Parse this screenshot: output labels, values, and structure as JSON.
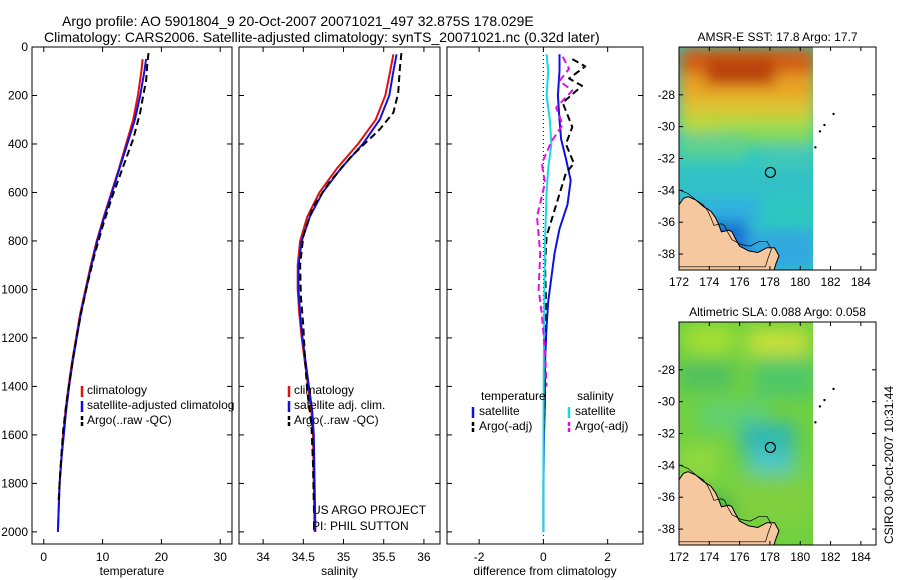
{
  "figure": {
    "title_line1": "Argo profile: AO 5901804_9 20-Oct-2007 20071021_497 32.875S 178.029E",
    "title_line2": "Climatology: CARS2006. Satellite-adjusted climatology: synTS_20071021.nc (0.32d later)",
    "side_stamp": "CSIRO 30-Oct-2007 10:31:44",
    "project_line1": "US ARGO PROJECT",
    "project_line2": "PI: PHIL SUTTON"
  },
  "colors": {
    "climatology": "#e01010",
    "satellite": "#1010e0",
    "argo": "#000000",
    "salinity_satellite": "#18d8e0",
    "salinity_argo": "#e010e0",
    "land": "#f5c8a0"
  },
  "chart_data": [
    {
      "type": "line",
      "name": "temperature-profile",
      "xlabel": "temperature",
      "ylabel": "",
      "xlim": [
        -2,
        32
      ],
      "ylim": [
        2050,
        0
      ],
      "xticks": [
        0,
        10,
        20,
        30
      ],
      "xtick_labels": [
        "0",
        "10",
        "20",
        "30"
      ],
      "yticks": [
        0,
        200,
        400,
        600,
        800,
        1000,
        1200,
        1400,
        1600,
        1800,
        2000
      ],
      "ytick_labels": [
        "0",
        "200",
        "400",
        "600",
        "800",
        "1000",
        "1200",
        "1400",
        "1600",
        "1800",
        "2000"
      ],
      "legend": [
        "climatology",
        "satellite-adjusted climatolog",
        "Argo(..raw -QC)"
      ],
      "series": [
        {
          "name": "climatology",
          "style": "solid",
          "color": "#e01010",
          "x": [
            16.8,
            16.6,
            16.0,
            15.2,
            14.0,
            12.8,
            11.5,
            10.2,
            9.0,
            8.0,
            7.1,
            6.2,
            5.5,
            4.8,
            4.2,
            3.7,
            3.3,
            3.0,
            2.7,
            2.4
          ],
          "y": [
            50,
            100,
            200,
            300,
            400,
            500,
            600,
            700,
            800,
            900,
            1000,
            1100,
            1200,
            1300,
            1400,
            1500,
            1600,
            1700,
            1800,
            2000
          ]
        },
        {
          "name": "satellite-adjusted climatolog",
          "style": "solid",
          "color": "#1010e0",
          "x": [
            17.4,
            17.1,
            16.4,
            15.5,
            14.2,
            12.9,
            11.6,
            10.3,
            9.1,
            8.1,
            7.2,
            6.3,
            5.6,
            4.9,
            4.3,
            3.8,
            3.4,
            3.0,
            2.7,
            2.4
          ],
          "y": [
            50,
            100,
            200,
            300,
            400,
            500,
            600,
            700,
            800,
            900,
            1000,
            1100,
            1200,
            1300,
            1400,
            1500,
            1600,
            1700,
            1800,
            2000
          ]
        },
        {
          "name": "Argo(..raw -QC)",
          "style": "dashed",
          "color": "#000000",
          "x": [
            17.8,
            17.6,
            17.4,
            16.9,
            16.4,
            15.2,
            13.4,
            11.6,
            10.0,
            8.6,
            7.4,
            6.5,
            5.7,
            5.0,
            4.4,
            3.8,
            3.3,
            3.0,
            2.7,
            2.5
          ],
          "y": [
            25,
            70,
            140,
            200,
            270,
            380,
            500,
            620,
            740,
            860,
            980,
            1080,
            1180,
            1280,
            1380,
            1480,
            1580,
            1680,
            1800,
            1880
          ]
        }
      ]
    },
    {
      "type": "line",
      "name": "salinity-profile",
      "xlabel": "salinity",
      "ylabel": "",
      "xlim": [
        33.7,
        36.2
      ],
      "ylim": [
        2050,
        0
      ],
      "xticks": [
        34,
        34.5,
        35,
        35.5,
        36
      ],
      "xtick_labels": [
        "34",
        "34.5",
        "35",
        "35.5",
        "36"
      ],
      "legend": [
        "climatology",
        "satellite adj. clim.",
        "Argo(..raw -QC)"
      ],
      "series": [
        {
          "name": "climatology",
          "style": "solid",
          "color": "#e01010",
          "x": [
            35.62,
            35.58,
            35.52,
            35.4,
            35.18,
            34.92,
            34.7,
            34.55,
            34.46,
            34.43,
            34.43,
            34.45,
            34.48,
            34.52,
            34.56,
            34.6,
            34.62,
            34.63,
            34.64
          ],
          "y": [
            30,
            100,
            200,
            300,
            400,
            500,
            600,
            700,
            800,
            900,
            1000,
            1100,
            1200,
            1300,
            1400,
            1500,
            1600,
            1800,
            2000
          ]
        },
        {
          "name": "satellite adj. clim.",
          "style": "solid",
          "color": "#1010e0",
          "x": [
            35.66,
            35.62,
            35.57,
            35.45,
            35.24,
            34.97,
            34.74,
            34.58,
            34.48,
            34.44,
            34.44,
            34.46,
            34.49,
            34.53,
            34.57,
            34.61,
            34.63,
            34.64,
            34.65
          ],
          "y": [
            30,
            100,
            200,
            300,
            400,
            500,
            600,
            700,
            800,
            900,
            1000,
            1100,
            1200,
            1300,
            1400,
            1500,
            1600,
            1800,
            2000
          ]
        },
        {
          "name": "Argo(..raw -QC)",
          "style": "dashed",
          "color": "#000000",
          "x": [
            35.72,
            35.7,
            35.68,
            35.62,
            35.45,
            35.1,
            34.82,
            34.62,
            34.5,
            34.46,
            34.47,
            34.5,
            34.52,
            34.55,
            34.6,
            34.62,
            34.63
          ],
          "y": [
            25,
            90,
            190,
            270,
            340,
            450,
            560,
            660,
            780,
            900,
            1030,
            1150,
            1280,
            1420,
            1560,
            1720,
            1880
          ]
        }
      ]
    },
    {
      "type": "line",
      "name": "difference-profile",
      "xlabel": "difference from climatology",
      "ylabel": "",
      "xlim": [
        -3,
        3.1
      ],
      "ylim": [
        2050,
        0
      ],
      "xticks": [
        -2,
        0,
        2
      ],
      "xtick_labels": [
        "-2",
        "0",
        "2"
      ],
      "legend_groups": [
        {
          "heading": "temperature",
          "items": [
            "satellite",
            "Argo(-adj)"
          ]
        },
        {
          "heading": "salinity",
          "items": [
            "satellite",
            "Argo(-adj)"
          ]
        }
      ],
      "series": [
        {
          "name": "temperature satellite",
          "style": "solid",
          "color": "#1010e0",
          "x": [
            0.5,
            0.5,
            0.45,
            0.5,
            0.55,
            0.7,
            0.85,
            0.75,
            0.5,
            0.35,
            0.25,
            0.15,
            0.1,
            0.05,
            0.05,
            0.02,
            0.0,
            0.0
          ],
          "y": [
            30,
            100,
            200,
            300,
            380,
            460,
            550,
            650,
            750,
            850,
            950,
            1050,
            1150,
            1300,
            1450,
            1600,
            1800,
            2000
          ]
        },
        {
          "name": "temperature Argo(-adj)",
          "style": "dashed",
          "color": "#000000",
          "x": [
            0.9,
            1.3,
            0.8,
            1.2,
            0.6,
            0.9,
            0.7,
            0.95,
            0.7,
            0.1,
            0.05,
            0.08,
            0.05,
            0.03,
            0.02
          ],
          "y": [
            50,
            80,
            130,
            160,
            230,
            330,
            400,
            480,
            520,
            780,
            900,
            1050,
            1200,
            1400,
            1600
          ]
        },
        {
          "name": "salinity satellite",
          "style": "solid",
          "color": "#18d8e0",
          "x": [
            0.1,
            0.15,
            0.1,
            0.2,
            0.25,
            0.15,
            0.1,
            0.05,
            0.03,
            0.02,
            0.01,
            0.0,
            0.0
          ],
          "y": [
            30,
            100,
            200,
            300,
            400,
            500,
            600,
            800,
            1000,
            1200,
            1400,
            1700,
            2000
          ]
        },
        {
          "name": "salinity Argo(-adj)",
          "style": "dashed",
          "color": "#e010e0",
          "x": [
            0.6,
            0.8,
            0.5,
            0.9,
            0.4,
            0.6,
            0.25,
            -0.05,
            0.05,
            -0.2,
            -0.1,
            -0.15,
            -0.05,
            0.05,
            0.1
          ],
          "y": [
            40,
            90,
            140,
            180,
            250,
            320,
            390,
            480,
            560,
            700,
            850,
            1000,
            1100,
            1250,
            1400
          ]
        }
      ]
    }
  ],
  "maps": [
    {
      "title": "AMSR-E SST: 17.8 Argo: 17.7",
      "xlim": [
        172,
        185
      ],
      "ylim": [
        -39,
        -25
      ],
      "xticks": [
        172,
        174,
        176,
        178,
        180,
        182,
        184
      ],
      "yticks": [
        -28,
        -30,
        -32,
        -34,
        -36,
        -38
      ],
      "field": "sst",
      "marker": {
        "lon": 178.03,
        "lat": -32.875
      }
    },
    {
      "title": "Altimetric SLA: 0.088 Argo: 0.058",
      "xlim": [
        172,
        185
      ],
      "ylim": [
        -39,
        -25
      ],
      "xticks": [
        172,
        174,
        176,
        178,
        180,
        182,
        184
      ],
      "yticks": [
        -28,
        -30,
        -32,
        -34,
        -36,
        -38
      ],
      "field": "sla",
      "marker": {
        "lon": 178.03,
        "lat": -32.875
      }
    }
  ]
}
